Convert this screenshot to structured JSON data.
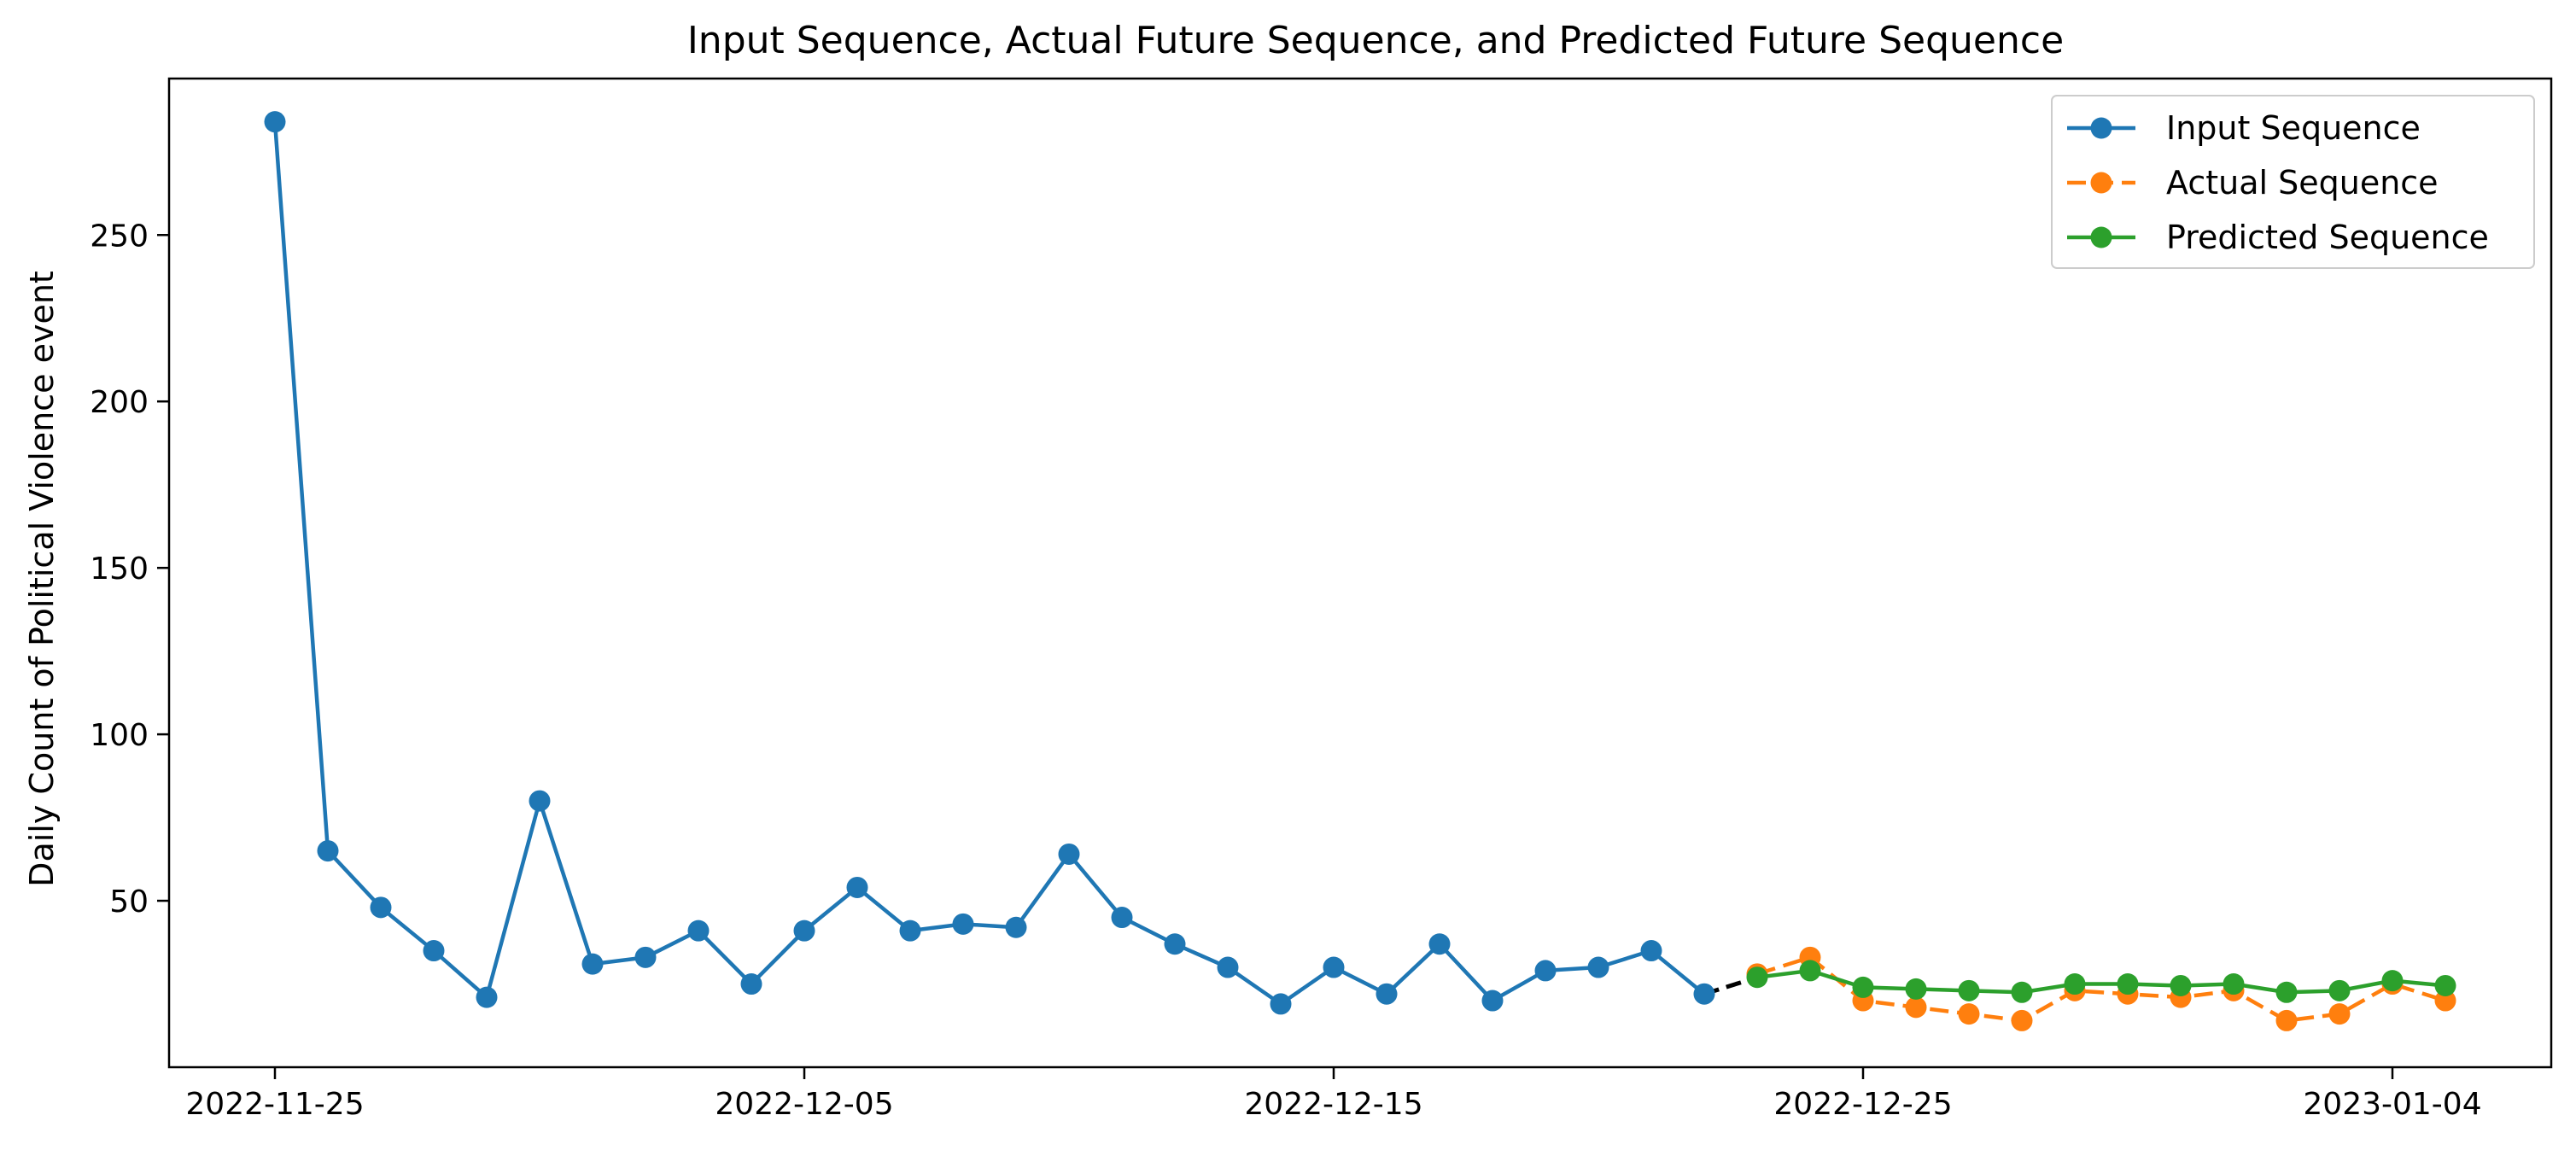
{
  "chart_data": {
    "type": "line",
    "title": "Input Sequence, Actual Future Sequence, and Predicted Future Sequence",
    "xlabel": "",
    "ylabel": "Daily Count of Political Violence event",
    "x_axis_type": "date",
    "xlim": [
      "2022-11-23",
      "2023-01-07"
    ],
    "ylim": [
      0,
      297
    ],
    "xticks": [
      "2022-11-25",
      "2022-12-05",
      "2022-12-15",
      "2022-12-25",
      "2023-01-04"
    ],
    "yticks": [
      50,
      100,
      150,
      200,
      250
    ],
    "grid": false,
    "legend_position": "upper right",
    "series": [
      {
        "name": "Input Sequence",
        "color": "#1f77b4",
        "line_style": "solid",
        "marker": "circle",
        "points": [
          {
            "x": "2022-11-25",
            "y": 284
          },
          {
            "x": "2022-11-26",
            "y": 65
          },
          {
            "x": "2022-11-27",
            "y": 48
          },
          {
            "x": "2022-11-28",
            "y": 35
          },
          {
            "x": "2022-11-29",
            "y": 21
          },
          {
            "x": "2022-11-30",
            "y": 80
          },
          {
            "x": "2022-12-01",
            "y": 31
          },
          {
            "x": "2022-12-02",
            "y": 33
          },
          {
            "x": "2022-12-03",
            "y": 41
          },
          {
            "x": "2022-12-04",
            "y": 25
          },
          {
            "x": "2022-12-05",
            "y": 41
          },
          {
            "x": "2022-12-06",
            "y": 54
          },
          {
            "x": "2022-12-07",
            "y": 41
          },
          {
            "x": "2022-12-08",
            "y": 43
          },
          {
            "x": "2022-12-09",
            "y": 42
          },
          {
            "x": "2022-12-10",
            "y": 64
          },
          {
            "x": "2022-12-11",
            "y": 45
          },
          {
            "x": "2022-12-12",
            "y": 37
          },
          {
            "x": "2022-12-13",
            "y": 30
          },
          {
            "x": "2022-12-14",
            "y": 19
          },
          {
            "x": "2022-12-15",
            "y": 30
          },
          {
            "x": "2022-12-16",
            "y": 22
          },
          {
            "x": "2022-12-17",
            "y": 37
          },
          {
            "x": "2022-12-18",
            "y": 20
          },
          {
            "x": "2022-12-19",
            "y": 29
          },
          {
            "x": "2022-12-20",
            "y": 30
          },
          {
            "x": "2022-12-21",
            "y": 35
          },
          {
            "x": "2022-12-22",
            "y": 22
          }
        ]
      },
      {
        "name": "Actual Sequence",
        "color": "#ff7f0e",
        "line_style": "dashed",
        "marker": "circle",
        "points": [
          {
            "x": "2022-12-23",
            "y": 28
          },
          {
            "x": "2022-12-24",
            "y": 33
          },
          {
            "x": "2022-12-25",
            "y": 20
          },
          {
            "x": "2022-12-26",
            "y": 18
          },
          {
            "x": "2022-12-27",
            "y": 16
          },
          {
            "x": "2022-12-28",
            "y": 14
          },
          {
            "x": "2022-12-29",
            "y": 23
          },
          {
            "x": "2022-12-30",
            "y": 22
          },
          {
            "x": "2022-12-31",
            "y": 21
          },
          {
            "x": "2023-01-01",
            "y": 23
          },
          {
            "x": "2023-01-02",
            "y": 14
          },
          {
            "x": "2023-01-03",
            "y": 16
          },
          {
            "x": "2023-01-04",
            "y": 25
          },
          {
            "x": "2023-01-05",
            "y": 20
          }
        ]
      },
      {
        "name": "Predicted Sequence",
        "color": "#2ca02c",
        "line_style": "solid",
        "marker": "circle",
        "points": [
          {
            "x": "2022-12-23",
            "y": 27
          },
          {
            "x": "2022-12-24",
            "y": 29
          },
          {
            "x": "2022-12-25",
            "y": 24
          },
          {
            "x": "2022-12-26",
            "y": 23.5
          },
          {
            "x": "2022-12-27",
            "y": 23
          },
          {
            "x": "2022-12-28",
            "y": 22.5
          },
          {
            "x": "2022-12-29",
            "y": 25
          },
          {
            "x": "2022-12-30",
            "y": 25
          },
          {
            "x": "2022-12-31",
            "y": 24.5
          },
          {
            "x": "2023-01-01",
            "y": 25
          },
          {
            "x": "2023-01-02",
            "y": 22.5
          },
          {
            "x": "2023-01-03",
            "y": 23
          },
          {
            "x": "2023-01-04",
            "y": 26
          },
          {
            "x": "2023-01-05",
            "y": 24.5
          }
        ]
      }
    ],
    "connector": {
      "color": "#000000",
      "line_style": "dashed",
      "from": {
        "x": "2022-12-22",
        "y": 22
      },
      "to": {
        "x": "2022-12-23",
        "y": 27
      }
    }
  }
}
